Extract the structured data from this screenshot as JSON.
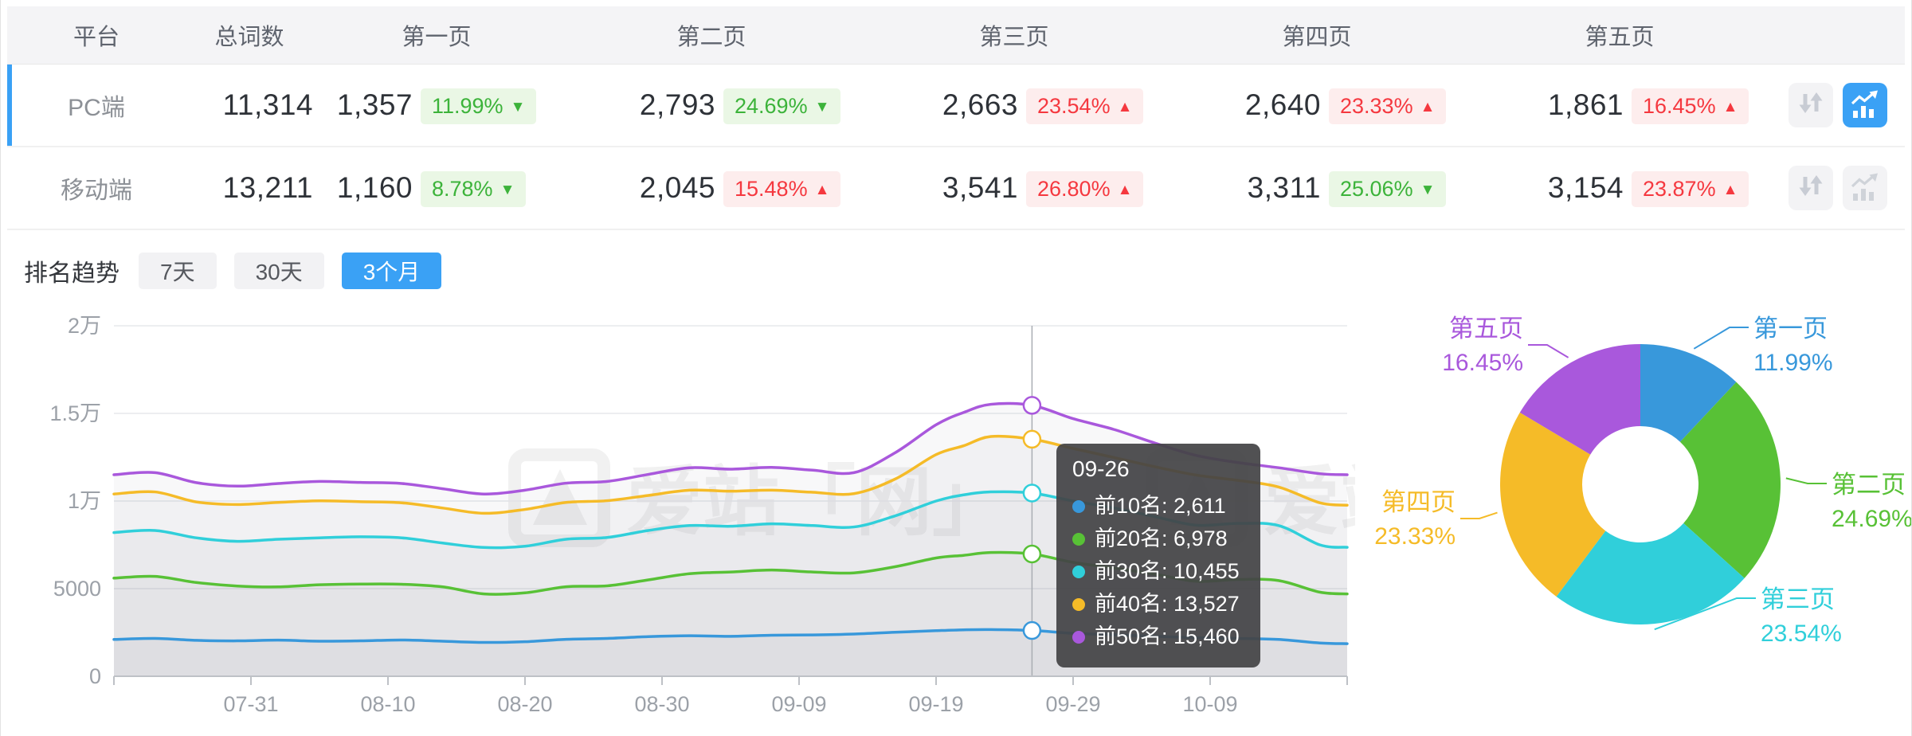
{
  "table": {
    "columns": [
      "平台",
      "总词数",
      "第一页",
      "第二页",
      "第三页",
      "第四页",
      "第五页"
    ],
    "rows": [
      {
        "platform": "PC端",
        "total": "11,314",
        "selected": true,
        "pages": [
          {
            "num": "1,357",
            "pct": "11.99%",
            "dir": "down",
            "arrow": "▼"
          },
          {
            "num": "2,793",
            "pct": "24.69%",
            "dir": "down",
            "arrow": "▼"
          },
          {
            "num": "2,663",
            "pct": "23.54%",
            "dir": "up",
            "arrow": "▲"
          },
          {
            "num": "2,640",
            "pct": "23.33%",
            "dir": "up",
            "arrow": "▲"
          },
          {
            "num": "1,861",
            "pct": "16.45%",
            "dir": "up",
            "arrow": "▲"
          }
        ]
      },
      {
        "platform": "移动端",
        "total": "13,211",
        "selected": false,
        "pages": [
          {
            "num": "1,160",
            "pct": "8.78%",
            "dir": "down",
            "arrow": "▼"
          },
          {
            "num": "2,045",
            "pct": "15.48%",
            "dir": "up",
            "arrow": "▲"
          },
          {
            "num": "3,541",
            "pct": "26.80%",
            "dir": "up",
            "arrow": "▲"
          },
          {
            "num": "3,311",
            "pct": "25.06%",
            "dir": "down",
            "arrow": "▼"
          },
          {
            "num": "3,154",
            "pct": "23.87%",
            "dir": "up",
            "arrow": "▲"
          }
        ]
      }
    ]
  },
  "trend": {
    "title": "排名趋势",
    "tabs": [
      "7天",
      "30天",
      "3个月"
    ],
    "active_tab": "3个月"
  },
  "watermark": "爱站「网」",
  "colors": {
    "accent_blue": "#3AA1F5",
    "up_red": "#F5383F",
    "down_green": "#3CB33A",
    "axis_text": "#9CA1A8"
  },
  "chart_data": [
    {
      "type": "line",
      "title": "排名趋势 3个月",
      "xlabel": "",
      "ylabel": "",
      "ylim": [
        0,
        20000
      ],
      "grid": true,
      "yticks": [
        {
          "value": 0,
          "text": "0"
        },
        {
          "value": 5000,
          "text": "5000"
        },
        {
          "value": 10000,
          "text": "1万"
        },
        {
          "value": 15000,
          "text": "1.5万"
        },
        {
          "value": 20000,
          "text": "2万"
        }
      ],
      "xticks": [
        {
          "day": 10,
          "text": "07-31"
        },
        {
          "day": 20,
          "text": "08-10"
        },
        {
          "day": 30,
          "text": "08-20"
        },
        {
          "day": 40,
          "text": "08-30"
        },
        {
          "day": 50,
          "text": "09-09"
        },
        {
          "day": 60,
          "text": "09-19"
        },
        {
          "day": 70,
          "text": "09-29"
        },
        {
          "day": 80,
          "text": "10-09"
        }
      ],
      "days": [
        0,
        3,
        6,
        9,
        12,
        15,
        18,
        21,
        24,
        27,
        30,
        33,
        36,
        39,
        42,
        45,
        48,
        51,
        54,
        57,
        60,
        62,
        64,
        67,
        70,
        73,
        76,
        79,
        82,
        85,
        88,
        90
      ],
      "series": [
        {
          "name": "前10名",
          "color": "#3898DB",
          "values": [
            2100,
            2160,
            2050,
            2020,
            2060,
            2000,
            2020,
            2070,
            2000,
            1930,
            1970,
            2110,
            2160,
            2260,
            2310,
            2280,
            2340,
            2360,
            2410,
            2510,
            2600,
            2650,
            2665,
            2611,
            2450,
            2370,
            2280,
            2200,
            2160,
            2100,
            1900,
            1860
          ]
        },
        {
          "name": "前20名",
          "color": "#58C136",
          "values": [
            5600,
            5700,
            5350,
            5150,
            5100,
            5220,
            5260,
            5250,
            5100,
            4700,
            4760,
            5110,
            5160,
            5500,
            5850,
            5950,
            6060,
            5950,
            5900,
            6250,
            6750,
            6900,
            7060,
            6978,
            6500,
            6180,
            5820,
            5420,
            5520,
            5460,
            4800,
            4700
          ]
        },
        {
          "name": "前30名",
          "color": "#30CFDA",
          "values": [
            8200,
            8320,
            7900,
            7700,
            7820,
            7900,
            7960,
            7900,
            7600,
            7350,
            7420,
            7820,
            7920,
            8320,
            8600,
            8560,
            8700,
            8600,
            8520,
            9150,
            10000,
            10350,
            10520,
            10455,
            10000,
            9600,
            9100,
            8620,
            8720,
            8600,
            7500,
            7360
          ]
        },
        {
          "name": "前40名",
          "color": "#F5BB28",
          "values": [
            10400,
            10520,
            9950,
            9800,
            9920,
            10010,
            9960,
            9900,
            9600,
            9300,
            9520,
            9920,
            10020,
            10320,
            10620,
            10560,
            10620,
            10500,
            10420,
            11250,
            12650,
            13150,
            13680,
            13527,
            13000,
            12480,
            11950,
            11480,
            11180,
            10800,
            9900,
            9760
          ]
        },
        {
          "name": "前50名",
          "color": "#A958DC",
          "values": [
            11500,
            11620,
            11050,
            10850,
            11000,
            11120,
            11060,
            11000,
            10700,
            10400,
            10620,
            11020,
            11120,
            11520,
            11900,
            11820,
            11920,
            11760,
            11620,
            12750,
            14350,
            15050,
            15520,
            15460,
            14700,
            14080,
            13300,
            12600,
            12200,
            11900,
            11560,
            11500
          ]
        }
      ],
      "tooltip": {
        "title": "09-26",
        "day": 67,
        "items": [
          {
            "name": "前10名",
            "value": "2,611",
            "color": "#3898DB"
          },
          {
            "name": "前20名",
            "value": "6,978",
            "color": "#58C136"
          },
          {
            "name": "前30名",
            "value": "10,455",
            "color": "#30CFDA"
          },
          {
            "name": "前40名",
            "value": "13,527",
            "color": "#F5BB28"
          },
          {
            "name": "前50名",
            "value": "15,460",
            "color": "#A958DC"
          }
        ]
      }
    },
    {
      "type": "pie",
      "title": "页面分布",
      "donut": true,
      "slices": [
        {
          "label": "第一页",
          "pct": 11.99,
          "pct_text": "11.99%",
          "color": "#3898DB",
          "label_pos": {
            "x": 500,
            "lineY": 40,
            "nameY": 52,
            "pctY": 94,
            "anchor": "start"
          }
        },
        {
          "label": "第二页",
          "pct": 24.69,
          "pct_text": "24.69%",
          "color": "#58C136",
          "label_pos": {
            "x": 598,
            "lineY": 236,
            "nameY": 248,
            "pctY": 290,
            "anchor": "start"
          }
        },
        {
          "label": "第三页",
          "pct": 23.54,
          "pct_text": "23.54%",
          "color": "#30CFDA",
          "label_pos": {
            "x": 509,
            "lineY": 380,
            "nameY": 392,
            "pctY": 434,
            "anchor": "start"
          }
        },
        {
          "label": "第四页",
          "pct": 23.33,
          "pct_text": "23.33%",
          "color": "#F5BB28",
          "label_pos": {
            "x": 126,
            "lineY": 280,
            "nameY": 270,
            "pctY": 312,
            "anchor": "end"
          }
        },
        {
          "label": "第五页",
          "pct": 16.45,
          "pct_text": "16.45%",
          "color": "#A958DC",
          "label_pos": {
            "x": 211,
            "lineY": 62,
            "nameY": 52,
            "pctY": 94,
            "anchor": "end"
          }
        }
      ]
    }
  ]
}
